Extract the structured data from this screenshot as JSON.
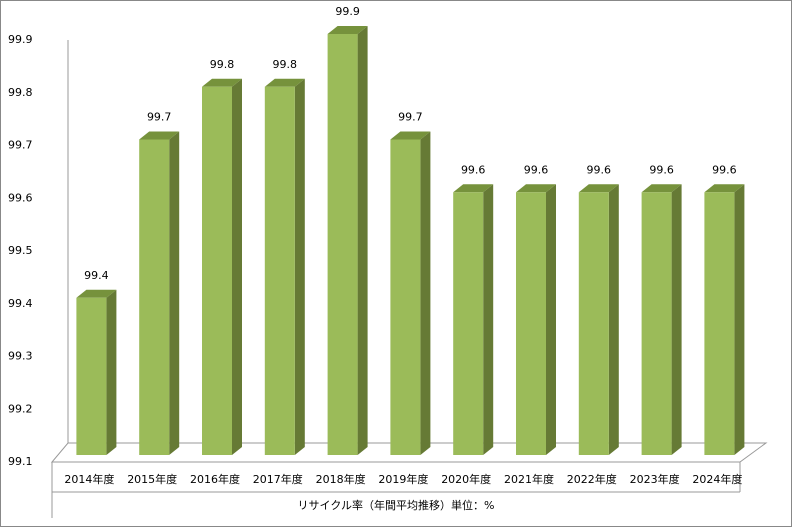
{
  "chart_data": {
    "type": "bar3d",
    "categories": [
      "2014年度",
      "2015年度",
      "2016年度",
      "2017年度",
      "2018年度",
      "2019年度",
      "2020年度",
      "2021年度",
      "2022年度",
      "2023年度",
      "2024年度"
    ],
    "values": [
      99.4,
      99.7,
      99.8,
      99.8,
      99.9,
      99.7,
      99.6,
      99.6,
      99.6,
      99.6,
      99.6
    ],
    "x_label": "リサイクル率（年間平均推移）単位：%",
    "ylim": [
      99.1,
      99.9
    ],
    "yticks": [
      99.1,
      99.2,
      99.3,
      99.4,
      99.5,
      99.6,
      99.7,
      99.8,
      99.9
    ],
    "color": "#9bbb59"
  }
}
